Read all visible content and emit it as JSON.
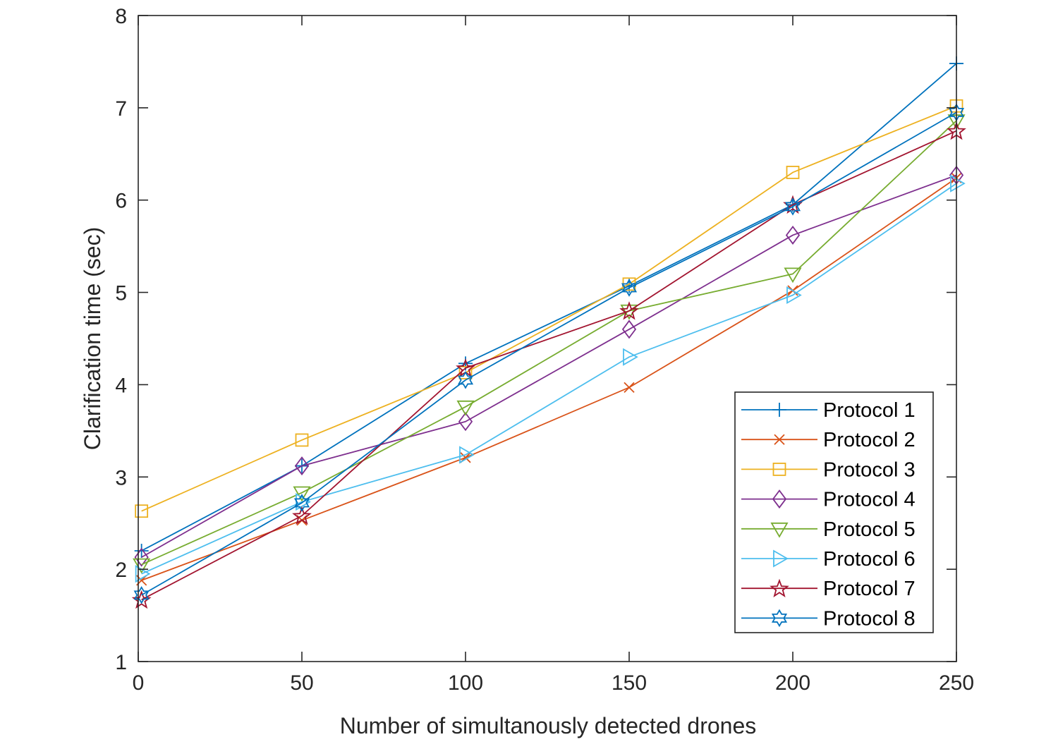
{
  "chart_data": {
    "type": "line",
    "title": "",
    "xlabel": "Number of simultanously detected drones",
    "ylabel": "Clarification time (sec)",
    "xlim": [
      0,
      250
    ],
    "ylim": [
      1,
      8
    ],
    "xticks": [
      0,
      50,
      100,
      150,
      200,
      250
    ],
    "yticks": [
      1,
      2,
      3,
      4,
      5,
      6,
      7,
      8
    ],
    "legend_position": "bottom-right",
    "grid": false,
    "x": [
      1,
      50,
      100,
      150,
      200,
      250
    ],
    "series": [
      {
        "name": "Protocol 1",
        "color": "#0072BD",
        "marker": "plus",
        "values": [
          2.2,
          3.12,
          4.23,
          5.07,
          5.95,
          7.48
        ]
      },
      {
        "name": "Protocol 2",
        "color": "#D95319",
        "marker": "x",
        "values": [
          1.88,
          2.53,
          3.21,
          3.97,
          5.02,
          6.24
        ]
      },
      {
        "name": "Protocol 3",
        "color": "#EDB120",
        "marker": "square",
        "values": [
          2.63,
          3.4,
          4.13,
          5.09,
          6.3,
          7.02
        ]
      },
      {
        "name": "Protocol 4",
        "color": "#7E2F8E",
        "marker": "diamond",
        "values": [
          2.13,
          3.12,
          3.6,
          4.6,
          5.62,
          6.27
        ]
      },
      {
        "name": "Protocol 5",
        "color": "#77AC30",
        "marker": "triangle-down",
        "values": [
          2.05,
          2.83,
          3.76,
          4.8,
          5.2,
          6.86
        ]
      },
      {
        "name": "Protocol 6",
        "color": "#4DBEEE",
        "marker": "triangle-right",
        "values": [
          1.95,
          2.73,
          3.24,
          4.3,
          4.97,
          6.18
        ]
      },
      {
        "name": "Protocol 7",
        "color": "#A2142F",
        "marker": "pentagram",
        "values": [
          1.67,
          2.58,
          4.18,
          4.8,
          5.95,
          6.75
        ]
      },
      {
        "name": "Protocol 8",
        "color": "#0072BD",
        "marker": "hexagram",
        "values": [
          1.72,
          2.72,
          4.05,
          5.05,
          5.93,
          6.95
        ]
      }
    ]
  }
}
